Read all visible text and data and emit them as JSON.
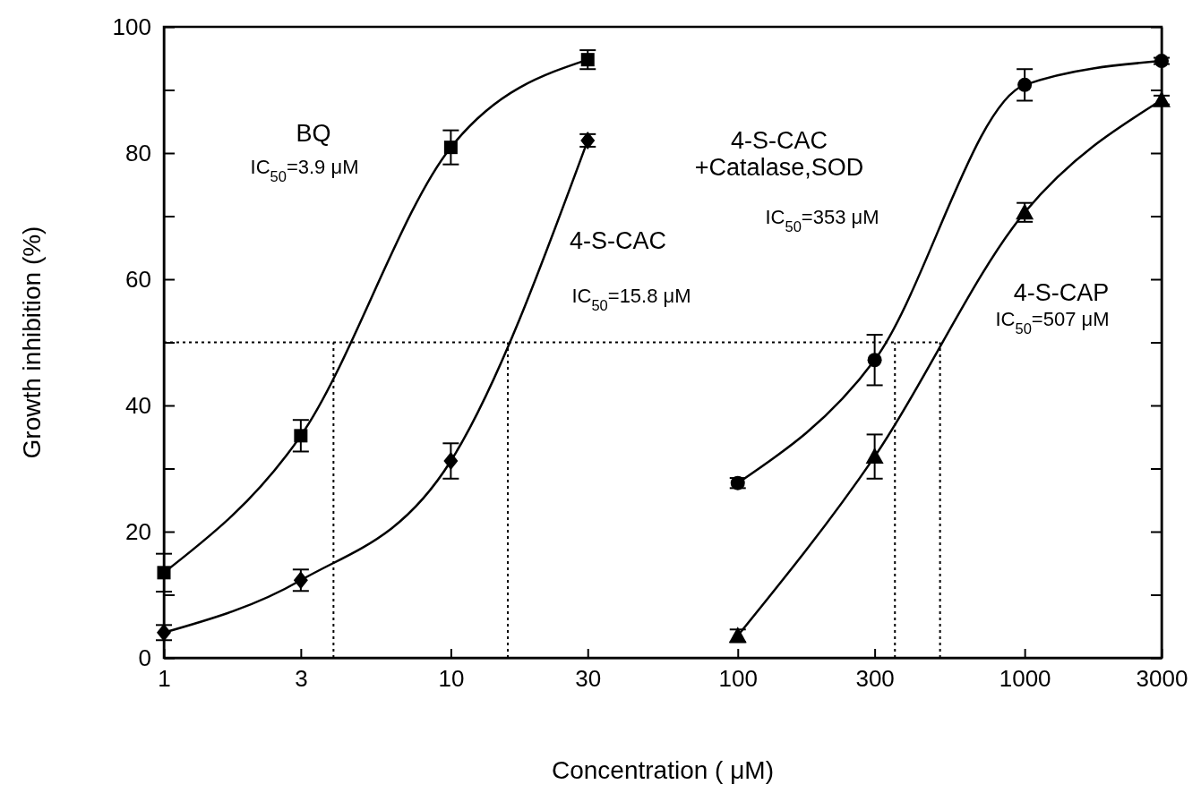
{
  "chart_data": {
    "type": "line",
    "xlabel": "Concentration ( μM)",
    "ylabel": "Growth inhibition (%)",
    "log": "x",
    "xlim": [
      1,
      3000
    ],
    "xticks": [
      1,
      3,
      10,
      30,
      100,
      300,
      1000,
      3000
    ],
    "ylim": [
      0,
      100
    ],
    "yticks": [
      0,
      {
        "value": 10,
        "label": null
      },
      20,
      {
        "value": 30,
        "label": null
      },
      40,
      {
        "value": 50,
        "label": null
      },
      60,
      {
        "value": 70,
        "label": null
      },
      80,
      {
        "value": 90,
        "label": null
      },
      100
    ],
    "grid": false,
    "line_style": "solid",
    "series": [
      {
        "color": "#000000",
        "marker": "square",
        "x": [
          1,
          3,
          10,
          30
        ],
        "values": [
          13.5,
          35.2,
          80.9,
          94.8
        ],
        "errors": [
          3,
          2.5,
          2.7,
          1.5
        ]
      },
      {
        "color": "#000000",
        "marker": "diamond",
        "x": [
          1,
          3,
          10,
          30
        ],
        "values": [
          4,
          12.3,
          31.2,
          82
        ],
        "errors": [
          1.2,
          1.7,
          2.8,
          1
        ]
      },
      {
        "color": "#000000",
        "marker": "circle",
        "x": [
          100,
          300,
          1000,
          3000
        ],
        "values": [
          27.7,
          47.2,
          90.8,
          94.6
        ],
        "errors": [
          0.8,
          4,
          2.5,
          0.5
        ]
      },
      {
        "color": "#000000",
        "marker": "triangle",
        "x": [
          100,
          300,
          1000,
          3000
        ],
        "values": [
          3.5,
          31.9,
          70.6,
          88.4
        ],
        "errors": [
          1,
          3.5,
          1.5,
          0.7
        ]
      }
    ],
    "ref_lines": [
      {
        "axis": "y",
        "value": 50,
        "line_style": "dotted"
      },
      {
        "axis": "x",
        "value": 3.9,
        "line_style": "dotted"
      },
      {
        "axis": "x",
        "value": 15.8,
        "line_style": "dotted"
      },
      {
        "axis": "x",
        "value": 353,
        "line_style": "dotted"
      },
      {
        "axis": "x",
        "value": 507,
        "line_style": "dotted"
      }
    ],
    "annotations": [
      "BQ",
      "IC$_{50}$=3.9 μM",
      "4-S-CAC",
      "IC$_{50}$=15.8 μM",
      "4-S-CAC",
      "+Catalase,SOD",
      "IC$_{50}$=353 μM",
      "4-S-CAP",
      "IC$_{50}$=507 μM"
    ]
  }
}
